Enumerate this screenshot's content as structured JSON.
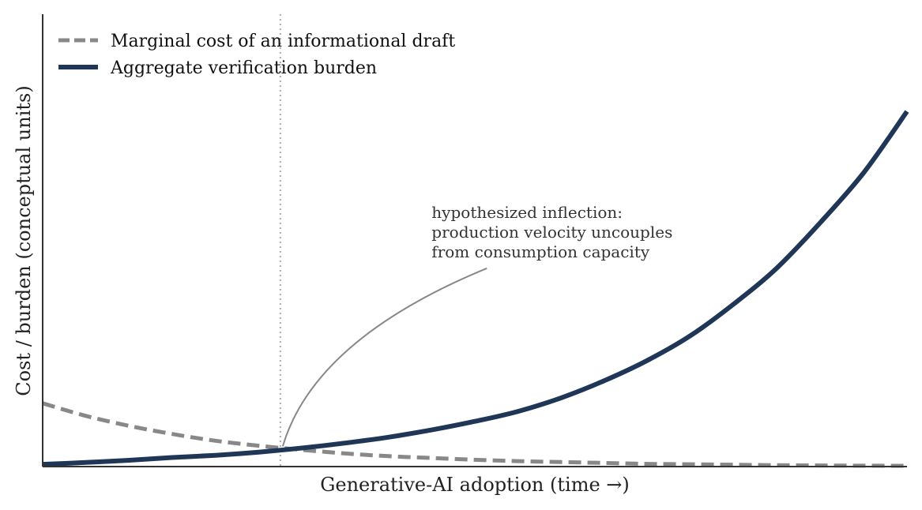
{
  "chart_data": {
    "type": "line",
    "xlabel": "Generative-AI adoption (time →)",
    "ylabel": "Cost / burden (conceptual units)",
    "xlim": [
      0,
      10
    ],
    "ylim": [
      0,
      10
    ],
    "grid": false,
    "legend_position": "top-left",
    "series": [
      {
        "name": "Marginal cost of an informational draft",
        "style": "dashed",
        "color": "#888888",
        "x": [
          0,
          0.5,
          1,
          1.5,
          2,
          2.5,
          3,
          3.5,
          4,
          4.5,
          5,
          5.5,
          6,
          6.5,
          7,
          7.5,
          8,
          8.5,
          9,
          9.5,
          10
        ],
        "y": [
          1.4,
          1.12,
          0.9,
          0.72,
          0.57,
          0.46,
          0.37,
          0.29,
          0.23,
          0.19,
          0.15,
          0.12,
          0.1,
          0.08,
          0.06,
          0.05,
          0.04,
          0.03,
          0.025,
          0.02,
          0.016
        ]
      },
      {
        "name": "Aggregate verification burden",
        "style": "solid",
        "color": "#1f3657",
        "x": [
          0,
          0.5,
          1,
          1.5,
          2,
          2.5,
          3,
          3.5,
          4,
          4.5,
          5,
          5.5,
          6,
          6.5,
          7,
          7.5,
          8,
          8.5,
          9,
          9.5,
          10
        ],
        "y": [
          0.05,
          0.09,
          0.14,
          0.2,
          0.25,
          0.32,
          0.41,
          0.52,
          0.65,
          0.81,
          1.0,
          1.22,
          1.52,
          1.9,
          2.35,
          2.9,
          3.6,
          4.4,
          5.4,
          6.5,
          7.85
        ]
      }
    ],
    "vline": {
      "x": 2.75
    },
    "annotation": {
      "lines": [
        "hypothesized inflection:",
        "production velocity uncouples",
        "from consumption capacity"
      ],
      "text_x": 4.5,
      "text_y": 5.5,
      "point_x": 2.75,
      "point_y": 0.34
    }
  }
}
